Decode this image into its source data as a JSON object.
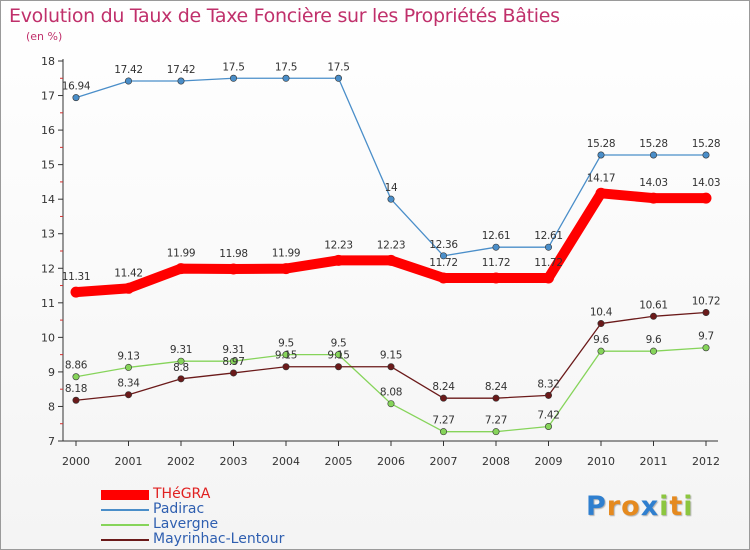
{
  "chart_data": {
    "type": "line",
    "title": "Evolution du Taux de Taxe Foncière sur les Propriétés Bâties",
    "subtitle": "(en %)",
    "x": [
      "2000",
      "2001",
      "2002",
      "2003",
      "2004",
      "2005",
      "2006",
      "2007",
      "2008",
      "2009",
      "2010",
      "2011",
      "2012"
    ],
    "ylim": [
      7,
      18
    ],
    "yticks": [
      7,
      8,
      9,
      10,
      11,
      12,
      13,
      14,
      15,
      16,
      17,
      18
    ],
    "grid": false,
    "legend_position": "bottom-left",
    "series": [
      {
        "name": "THéGRA",
        "color": "#ff0000",
        "values": [
          11.31,
          11.42,
          11.99,
          11.98,
          11.99,
          12.23,
          12.23,
          11.72,
          11.72,
          11.72,
          14.17,
          14.03,
          14.03
        ],
        "labels": [
          "11.31",
          "11.42",
          "11.99",
          "11.98",
          "11.99",
          "12.23",
          "12.23",
          "11.72",
          "11.72",
          "11.72",
          "14.17",
          "14.03",
          "14.03"
        ]
      },
      {
        "name": "Padirac",
        "color": "#4a8ec9",
        "values": [
          16.94,
          17.42,
          17.42,
          17.5,
          17.5,
          17.5,
          14,
          12.36,
          12.61,
          12.61,
          15.28,
          15.28,
          15.28
        ],
        "labels": [
          "16.94",
          "17.42",
          "17.42",
          "17.5",
          "17.5",
          "17.5",
          "14",
          "12.36",
          "12.61",
          "12.61",
          "15.28",
          "15.28",
          "15.28"
        ]
      },
      {
        "name": "Lavergne",
        "color": "#86d45a",
        "values": [
          8.86,
          9.13,
          9.31,
          9.31,
          9.5,
          9.5,
          8.08,
          7.27,
          7.27,
          7.42,
          9.6,
          9.6,
          9.7
        ],
        "labels": [
          "8.86",
          "9.13",
          "9.31",
          "9.31",
          "9.5",
          "9.5",
          "8.08",
          "7.27",
          "7.27",
          "7.42",
          "9.6",
          "9.6",
          "9.7"
        ]
      },
      {
        "name": "Mayrinhac-Lentour",
        "color": "#6b1a1a",
        "values": [
          8.18,
          8.34,
          8.8,
          8.97,
          9.15,
          9.15,
          9.15,
          8.24,
          8.24,
          8.32,
          10.4,
          10.61,
          10.72
        ],
        "labels": [
          "8.18",
          "8.34",
          "8.8",
          "8.97",
          "9.15",
          "9.15",
          "9.15",
          "8.24",
          "8.24",
          "8.32",
          "10.4",
          "10.61",
          "10.72"
        ]
      }
    ]
  },
  "legend": {
    "items": [
      {
        "label": "THéGRA",
        "color": "#ff0000",
        "label_color": "#e02020"
      },
      {
        "label": "Padirac",
        "color": "#4a8ec9",
        "label_color": "#2f5fb0"
      },
      {
        "label": "Lavergne",
        "color": "#86d45a",
        "label_color": "#2f5fb0"
      },
      {
        "label": "Mayrinhac-Lentour",
        "color": "#6b1a1a",
        "label_color": "#2f5fb0"
      }
    ]
  },
  "logo": {
    "letters": [
      {
        "char": "P",
        "color": "#2f7fcf"
      },
      {
        "char": "r",
        "color": "#e58a1f"
      },
      {
        "char": "o",
        "color": "#e58a1f"
      },
      {
        "char": "x",
        "color": "#2f7fcf"
      },
      {
        "char": "i",
        "color": "#8cc63f"
      },
      {
        "char": "t",
        "color": "#e58a1f"
      },
      {
        "char": "i",
        "color": "#8cc63f"
      }
    ]
  }
}
